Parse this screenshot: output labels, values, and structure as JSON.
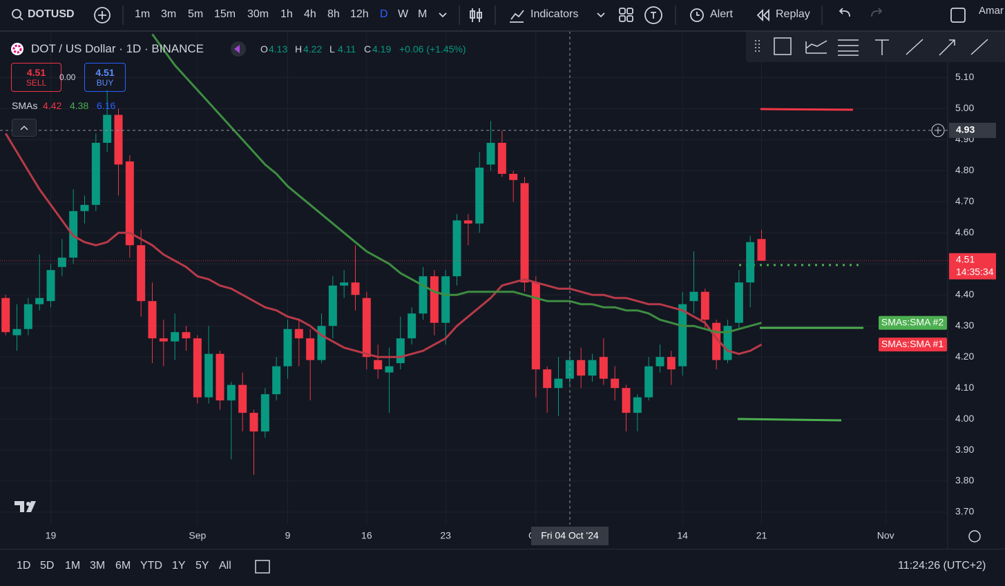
{
  "toolbar": {
    "symbol": "DOTUSD",
    "intervals": [
      "1m",
      "3m",
      "5m",
      "15m",
      "30m",
      "1h",
      "4h",
      "8h",
      "12h",
      "D",
      "W",
      "M"
    ],
    "indicators": "Indicators",
    "alert": "Alert",
    "replay": "Replay",
    "user": "Amar"
  },
  "legend": {
    "title": "DOT / US Dollar · 1D · BINANCE",
    "ohlc": [
      {
        "label": "O",
        "value": 4.13
      },
      {
        "label": "H",
        "value": 4.22
      },
      {
        "label": "L",
        "value": 4.11
      },
      {
        "label": "C",
        "value": 4.19
      }
    ],
    "change": "+0.06 (+1.45%)",
    "sell_price": 4.51,
    "sell": "SELL",
    "spread": "0.00",
    "buy_price": 4.51,
    "buy": "BUY",
    "sma_label": "SMAs",
    "sma_values": [
      4.42,
      4.38,
      6.16
    ]
  },
  "chart_data": {
    "type": "candlestick",
    "x": [
      "2024-08-15",
      "2024-08-16",
      "2024-08-17",
      "2024-08-18",
      "2024-08-19",
      "2024-08-20",
      "2024-08-21",
      "2024-08-22",
      "2024-08-23",
      "2024-08-24",
      "2024-08-25",
      "2024-08-26",
      "2024-08-27",
      "2024-08-28",
      "2024-08-29",
      "2024-08-30",
      "2024-08-31",
      "2024-09-01",
      "2024-09-02",
      "2024-09-03",
      "2024-09-04",
      "2024-09-05",
      "2024-09-06",
      "2024-09-07",
      "2024-09-08",
      "2024-09-09",
      "2024-09-10",
      "2024-09-11",
      "2024-09-12",
      "2024-09-13",
      "2024-09-14",
      "2024-09-15",
      "2024-09-16",
      "2024-09-17",
      "2024-09-18",
      "2024-09-19",
      "2024-09-20",
      "2024-09-21",
      "2024-09-22",
      "2024-09-23",
      "2024-09-24",
      "2024-09-25",
      "2024-09-26",
      "2024-09-27",
      "2024-09-28",
      "2024-09-29",
      "2024-09-30",
      "2024-10-01",
      "2024-10-02",
      "2024-10-03",
      "2024-10-04",
      "2024-10-05",
      "2024-10-06",
      "2024-10-07",
      "2024-10-08",
      "2024-10-09",
      "2024-10-10",
      "2024-10-11",
      "2024-10-12",
      "2024-10-13",
      "2024-10-14",
      "2024-10-15",
      "2024-10-16",
      "2024-10-17",
      "2024-10-18",
      "2024-10-19",
      "2024-10-20",
      "2024-10-21"
    ],
    "open": [
      4.39,
      4.27,
      4.29,
      4.37,
      4.38,
      4.49,
      4.52,
      4.67,
      4.69,
      4.89,
      4.98,
      4.83,
      4.56,
      4.38,
      4.26,
      4.25,
      4.28,
      4.26,
      4.07,
      4.21,
      4.06,
      4.11,
      4.02,
      3.96,
      4.08,
      4.17,
      4.29,
      4.26,
      4.19,
      4.3,
      4.43,
      4.44,
      4.39,
      4.19,
      4.15,
      4.18,
      4.26,
      4.34,
      4.46,
      4.31,
      4.46,
      4.64,
      4.63,
      4.82,
      4.89,
      4.79,
      4.76,
      4.44,
      4.16,
      4.1,
      4.13,
      4.19,
      4.14,
      4.2,
      4.13,
      4.1,
      4.02,
      4.07,
      4.17,
      4.2,
      4.17,
      4.38,
      4.41,
      4.31,
      4.19,
      4.31,
      4.44,
      4.58
    ],
    "high": [
      4.4,
      4.37,
      4.39,
      4.53,
      4.5,
      4.58,
      4.74,
      4.72,
      4.92,
      5.06,
      5.0,
      4.85,
      4.61,
      4.44,
      4.32,
      4.34,
      4.3,
      4.27,
      4.3,
      4.22,
      4.12,
      4.15,
      4.03,
      4.1,
      4.2,
      4.32,
      4.32,
      4.29,
      4.34,
      4.46,
      4.48,
      4.56,
      4.41,
      4.24,
      4.23,
      4.33,
      4.36,
      4.49,
      4.48,
      4.48,
      4.66,
      4.66,
      4.86,
      4.96,
      4.93,
      4.8,
      4.78,
      4.46,
      4.17,
      4.2,
      4.22,
      4.23,
      4.21,
      4.26,
      4.17,
      4.11,
      4.08,
      4.2,
      4.24,
      4.22,
      4.41,
      4.54,
      4.42,
      4.32,
      4.32,
      4.48,
      4.59,
      4.61
    ],
    "low": [
      4.27,
      4.22,
      4.27,
      4.35,
      4.36,
      4.46,
      4.5,
      4.63,
      4.67,
      4.86,
      4.72,
      4.52,
      4.33,
      4.18,
      4.17,
      4.19,
      4.22,
      4.05,
      4.05,
      4.03,
      3.87,
      3.96,
      3.82,
      3.94,
      4.06,
      4.13,
      4.17,
      4.06,
      4.18,
      4.26,
      4.39,
      4.35,
      4.16,
      4.13,
      4.02,
      4.16,
      4.24,
      4.32,
      4.27,
      4.24,
      4.43,
      4.56,
      4.6,
      4.8,
      4.78,
      4.7,
      4.41,
      4.07,
      4.02,
      4.01,
      4.11,
      4.1,
      4.12,
      4.11,
      4.06,
      3.96,
      3.96,
      4.06,
      4.15,
      4.11,
      4.14,
      4.34,
      4.29,
      4.16,
      4.18,
      4.29,
      4.36,
      4.51
    ],
    "close": [
      4.28,
      4.29,
      4.37,
      4.39,
      4.48,
      4.52,
      4.67,
      4.69,
      4.89,
      4.98,
      4.82,
      4.56,
      4.38,
      4.26,
      4.25,
      4.28,
      4.26,
      4.07,
      4.21,
      4.06,
      4.11,
      4.02,
      3.96,
      4.08,
      4.17,
      4.29,
      4.26,
      4.19,
      4.3,
      4.43,
      4.44,
      4.4,
      4.2,
      4.16,
      4.17,
      4.26,
      4.34,
      4.46,
      4.31,
      4.46,
      4.64,
      4.63,
      4.81,
      4.89,
      4.79,
      4.77,
      4.44,
      4.16,
      4.1,
      4.13,
      4.19,
      4.14,
      4.19,
      4.13,
      4.1,
      4.02,
      4.07,
      4.17,
      4.2,
      4.16,
      4.37,
      4.41,
      4.32,
      4.19,
      4.3,
      4.44,
      4.57,
      4.51
    ],
    "up_color": "#089981",
    "down_color": "#f23645",
    "series": [
      {
        "name": "SMAs:SMA #1",
        "color": "#b83a48",
        "values": [
          4.92,
          4.86,
          4.8,
          4.74,
          4.69,
          4.64,
          4.59,
          4.57,
          4.56,
          4.57,
          4.6,
          4.6,
          4.58,
          4.56,
          4.53,
          4.51,
          4.49,
          4.46,
          4.45,
          4.43,
          4.42,
          4.4,
          4.38,
          4.36,
          4.35,
          4.33,
          4.32,
          4.3,
          4.27,
          4.25,
          4.23,
          4.22,
          4.21,
          4.2,
          4.2,
          4.2,
          4.21,
          4.22,
          4.24,
          4.26,
          4.3,
          4.33,
          4.36,
          4.39,
          4.43,
          4.44,
          4.45,
          4.44,
          4.43,
          4.42,
          4.42,
          4.41,
          4.4,
          4.4,
          4.39,
          4.39,
          4.38,
          4.37,
          4.37,
          4.36,
          4.35,
          4.33,
          4.31,
          4.26,
          4.22,
          4.21,
          4.22,
          4.24
        ]
      },
      {
        "name": "SMAs:SMA #2",
        "color": "#3e8e41",
        "values": [
          null,
          null,
          null,
          null,
          null,
          null,
          null,
          null,
          null,
          null,
          null,
          null,
          null,
          5.24,
          5.19,
          5.14,
          5.1,
          5.06,
          5.02,
          4.98,
          4.94,
          4.9,
          4.86,
          4.82,
          4.79,
          4.75,
          4.72,
          4.69,
          4.66,
          4.63,
          4.6,
          4.57,
          4.54,
          4.52,
          4.5,
          4.47,
          4.45,
          4.43,
          4.41,
          4.4,
          4.4,
          4.41,
          4.41,
          4.41,
          4.41,
          4.41,
          4.4,
          4.39,
          4.38,
          4.38,
          4.38,
          4.37,
          4.37,
          4.36,
          4.36,
          4.35,
          4.35,
          4.34,
          4.32,
          4.31,
          4.3,
          4.3,
          4.29,
          4.28,
          4.28,
          4.29,
          4.3,
          4.31
        ]
      }
    ],
    "ylim": [
      3.66,
      5.25
    ],
    "yticks": [
      {
        "value": 3.7,
        "label": "3.70"
      },
      {
        "value": 3.8,
        "label": "3.80"
      },
      {
        "value": 3.9,
        "label": "3.90"
      },
      {
        "value": 4.0,
        "label": "4.00"
      },
      {
        "value": 4.1,
        "label": "4.10"
      },
      {
        "value": 4.2,
        "label": "4.20"
      },
      {
        "value": 4.3,
        "label": "4.30"
      },
      {
        "value": 4.4,
        "label": "4.40"
      },
      {
        "value": 4.5,
        "label": "4.50"
      },
      {
        "value": 4.6,
        "label": "4.60"
      },
      {
        "value": 4.7,
        "label": "4.70"
      },
      {
        "value": 4.8,
        "label": "4.80"
      },
      {
        "value": 4.9,
        "label": "4.90"
      },
      {
        "value": 5.0,
        "label": "5.00"
      },
      {
        "value": 5.1,
        "label": "5.10"
      }
    ],
    "xlim": [
      "2024-08-14T12:00Z",
      "2024-11-06T12:00Z"
    ],
    "xticks": [
      {
        "value": "2024-08-19",
        "label": "19"
      },
      {
        "value": "2024-09-01",
        "label": "Sep"
      },
      {
        "value": "2024-09-09",
        "label": "9"
      },
      {
        "value": "2024-09-16",
        "label": "16"
      },
      {
        "value": "2024-09-23",
        "label": "23"
      },
      {
        "value": "2024-10-01",
        "label": "Oct"
      },
      {
        "value": "2024-10-14",
        "label": "14"
      },
      {
        "value": "2024-10-21",
        "label": "21"
      },
      {
        "value": "2024-11-01",
        "label": "Nov"
      }
    ],
    "grid": true
  },
  "price_axis": {
    "crosshair_price": 4.93,
    "last_price": 4.51,
    "countdown": "14:35:34"
  },
  "crosshair_date": "Fri 04 Oct '24",
  "ranges": [
    "1D",
    "5D",
    "1M",
    "3M",
    "6M",
    "YTD",
    "1Y",
    "5Y",
    "All"
  ],
  "clock": "11:24:26 (UTC+2)"
}
